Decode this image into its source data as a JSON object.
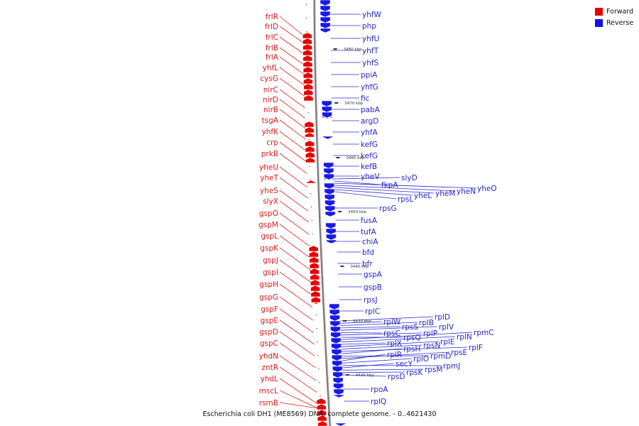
{
  "caption": "Escherichia coli DH1 (ME8569) DNA, complete genome. - 0..4621430",
  "legend": {
    "items": [
      {
        "label": "Forward",
        "color": "#e60000"
      },
      {
        "label": "Reverse",
        "color": "#1010ee"
      }
    ]
  },
  "ticks": [
    "3480 kbp",
    "3470 kbp",
    "3460 kbp",
    "3450 kbp",
    "3440 kbp",
    "3430 kbp",
    "3420 kbp"
  ],
  "forward_genes": [
    "frlR",
    "frlD",
    "frlC",
    "frlB",
    "frlA",
    "yhfL",
    "cysG",
    "nirC",
    "nirD",
    "nirB",
    "tsgA",
    "yhfK",
    "crp",
    "prkB",
    "yheU",
    "yheT",
    "yheS",
    "slyX",
    "gspO",
    "gspM",
    "gspL",
    "gspK",
    "gspJ",
    "gspI",
    "gspH",
    "gspG",
    "gspF",
    "gspE",
    "gspD",
    "gspC",
    "yhdN",
    "zntR",
    "yhdL",
    "mscL",
    "rsmB"
  ],
  "reverse_genes": [
    "yhfW",
    "php",
    "yhfU",
    "yhfT",
    "yhfS",
    "ppiA",
    "yhfG",
    "fic",
    "pabA",
    "argD",
    "yhfA",
    "kefG",
    "kefG",
    "kefB",
    "yheV",
    "slyD",
    "fkpA",
    "yheO",
    "yheN",
    "yheM",
    "yheL",
    "rpsL",
    "rpsG",
    "fusA",
    "tufA",
    "chiA",
    "bfd",
    "bfr",
    "gspA",
    "gspB",
    "rpsJ",
    "rplC",
    "rplD",
    "rplW",
    "rplB",
    "rpsS",
    "rplV",
    "rpsC",
    "rplP",
    "rpsQ",
    "rpmC",
    "rplN",
    "rplX",
    "rplE",
    "rpsN",
    "rplF",
    "rpsH",
    "rpmD",
    "rpsE",
    "rplR",
    "rplO",
    "rpmJ",
    "secY",
    "rpsM",
    "rpsK",
    "rpsD",
    "rpoA",
    "rplQ"
  ]
}
